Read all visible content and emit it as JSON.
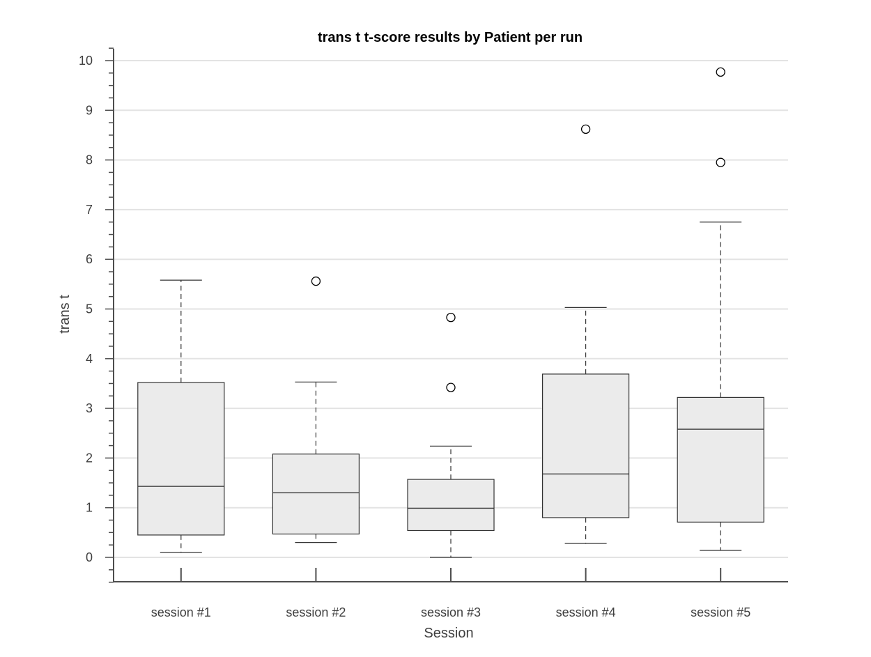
{
  "chart_data": {
    "type": "boxplot",
    "title": "trans t  t-score results by Patient per run",
    "xlabel": "Session",
    "ylabel": "trans t",
    "ylim": [
      -0.5,
      10.25
    ],
    "yticks": [
      0,
      1,
      2,
      3,
      4,
      5,
      6,
      7,
      8,
      9,
      10
    ],
    "grid": true,
    "categories": [
      "session #1",
      "session #2",
      "session #3",
      "session #4",
      "session #5"
    ],
    "boxes": [
      {
        "category": "session #1",
        "whisker_low": 0.1,
        "q1": 0.45,
        "median": 1.43,
        "q3": 3.52,
        "whisker_high": 5.58,
        "outliers": []
      },
      {
        "category": "session #2",
        "whisker_low": 0.3,
        "q1": 0.47,
        "median": 1.3,
        "q3": 2.08,
        "whisker_high": 3.53,
        "outliers": [
          5.56
        ]
      },
      {
        "category": "session #3",
        "whisker_low": 0.0,
        "q1": 0.54,
        "median": 0.99,
        "q3": 1.57,
        "whisker_high": 2.24,
        "outliers": [
          3.42,
          4.83
        ]
      },
      {
        "category": "session #4",
        "whisker_low": 0.28,
        "q1": 0.8,
        "median": 1.68,
        "q3": 3.69,
        "whisker_high": 5.03,
        "outliers": [
          8.62
        ]
      },
      {
        "category": "session #5",
        "whisker_low": 0.14,
        "q1": 0.71,
        "median": 2.58,
        "q3": 3.22,
        "whisker_high": 6.75,
        "outliers": [
          7.95,
          9.77
        ]
      }
    ],
    "colors": {
      "box_fill": "#ebebeb",
      "box_stroke": "#333333",
      "grid": "#e3e3e3",
      "axis": "#4d4d4d"
    }
  }
}
